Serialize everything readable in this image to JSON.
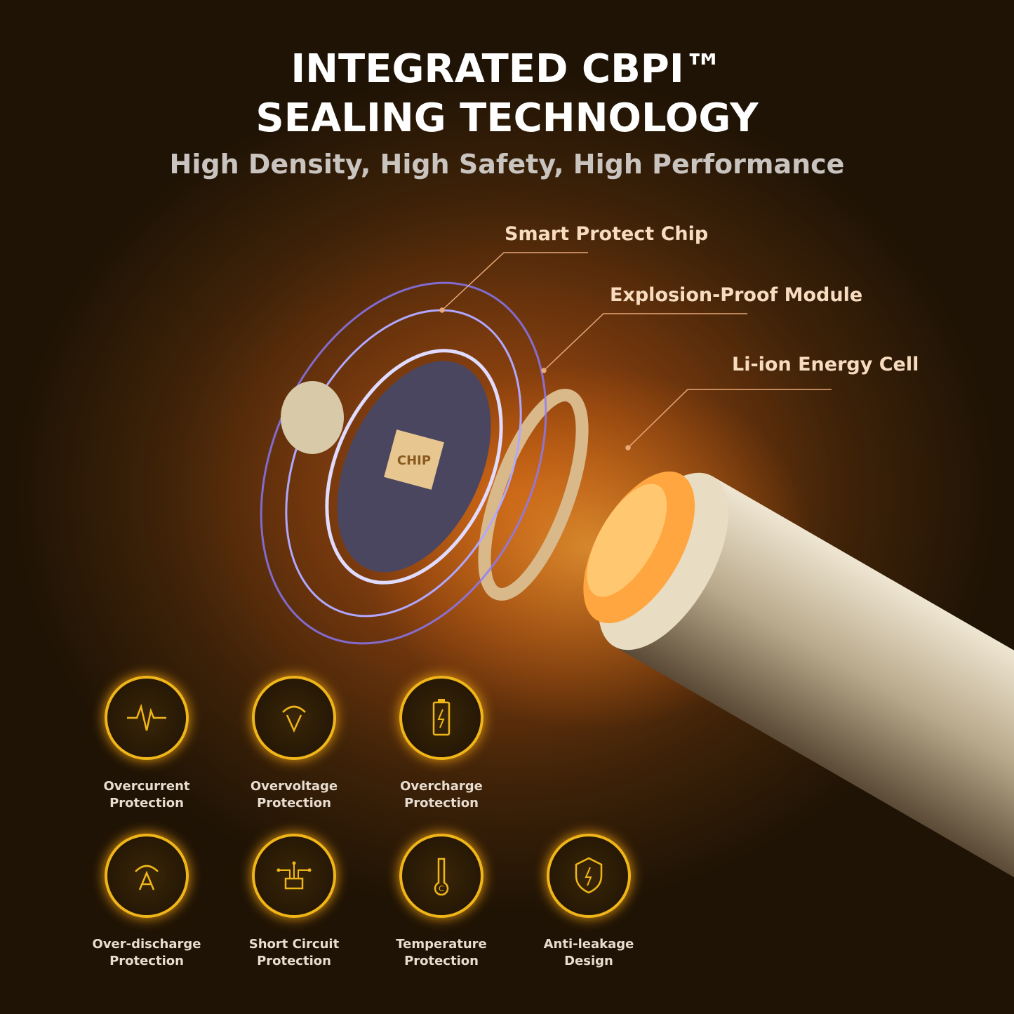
{
  "header": {
    "title_line1": "INTEGRATED CBPI™",
    "title_line2": "SEALING TECHNOLOGY",
    "subtitle": "High Density, High Safety, High Performance"
  },
  "callouts": [
    {
      "label": "Smart Protect Chip"
    },
    {
      "label": "Explosion-Proof Module"
    },
    {
      "label": "Li-ion Energy Cell"
    }
  ],
  "chip_text": "CHIP",
  "features": [
    {
      "line1": "Overcurrent",
      "line2": "Protection",
      "icon": "pulse-icon"
    },
    {
      "line1": "Overvoltage",
      "line2": "Protection",
      "icon": "voltage-icon"
    },
    {
      "line1": "Overcharge",
      "line2": "Protection",
      "icon": "battery-bolt-icon"
    },
    {
      "line1": "Over-discharge",
      "line2": "Protection",
      "icon": "ampere-icon"
    },
    {
      "line1": "Short Circuit",
      "line2": "Protection",
      "icon": "circuit-icon"
    },
    {
      "line1": "Temperature",
      "line2": "Protection",
      "icon": "thermometer-icon"
    },
    {
      "line1": "Anti-leakage",
      "line2": "Design",
      "icon": "shield-bolt-icon"
    }
  ],
  "colors": {
    "accent": "#f0b619",
    "callout_text": "#f7dcc0",
    "background": "#5a2e0b"
  }
}
